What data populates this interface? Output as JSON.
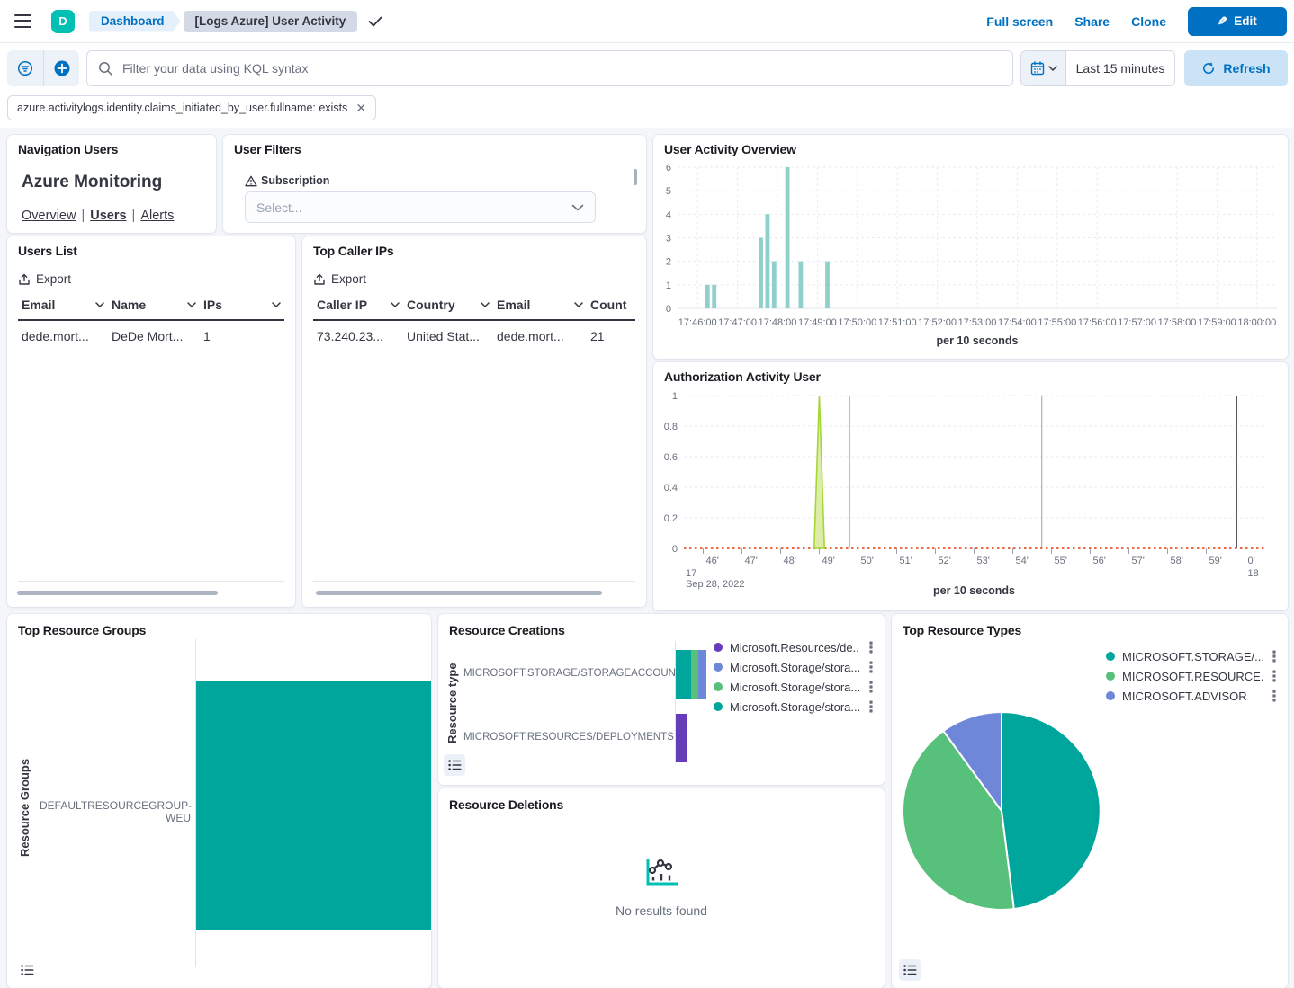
{
  "topbar": {
    "avatar_initial": "D",
    "breadcrumbs": [
      "Dashboard",
      "[Logs Azure] User Activity"
    ],
    "actions": {
      "full_screen": "Full screen",
      "share": "Share",
      "clone": "Clone",
      "edit": "Edit"
    }
  },
  "query_bar": {
    "search_placeholder": "Filter your data using KQL syntax",
    "time_range": "Last 15 minutes",
    "refresh_label": "Refresh",
    "filter_pill": "azure.activitylogs.identity.claims_initiated_by_user.fullname: exists"
  },
  "colors": {
    "accent": "#0071C2",
    "teal": "#00A69B",
    "green": "#57C17B",
    "periwinkle": "#6F87D8",
    "purple": "#663DB8",
    "histogram_bar": "#8FD0CA",
    "orange": "#ED6B45",
    "spike_stroke": "#A5D735",
    "spike_fill": "#DDEDA9",
    "grid": "#E8EBF1",
    "axis_text": "#69707D",
    "annotation_gray": "#98A2B3",
    "annotation_dark": "#54575C"
  },
  "panels": {
    "navigation_users": {
      "title": "Navigation Users",
      "heading": "Azure Monitoring",
      "links": [
        "Overview",
        "Users",
        "Alerts"
      ]
    },
    "user_filters": {
      "title": "User Filters",
      "field_label": "Subscription",
      "select_placeholder": "Select..."
    },
    "user_activity_overview": {
      "title": "User Activity Overview",
      "chart_data": {
        "type": "bar",
        "x_ticks": [
          "17:46:00",
          "17:47:00",
          "17:48:00",
          "17:49:00",
          "17:50:00",
          "17:51:00",
          "17:52:00",
          "17:53:00",
          "17:54:00",
          "17:55:00",
          "17:56:00",
          "17:57:00",
          "17:58:00",
          "17:59:00",
          "18:00:00"
        ],
        "x_domain": [
          "17:45:30",
          "18:00:30"
        ],
        "y_ticks": [
          0,
          1,
          2,
          3,
          4,
          5,
          6
        ],
        "ylim": [
          0,
          6
        ],
        "bars": [
          {
            "t": "17:46:10",
            "v": 1
          },
          {
            "t": "17:46:20",
            "v": 1
          },
          {
            "t": "17:47:30",
            "v": 3
          },
          {
            "t": "17:47:40",
            "v": 4
          },
          {
            "t": "17:47:50",
            "v": 2
          },
          {
            "t": "17:48:10",
            "v": 6
          },
          {
            "t": "17:48:30",
            "v": 2
          },
          {
            "t": "17:49:10",
            "v": 2
          }
        ],
        "bucket_seconds": 10,
        "xlabel": "per 10 seconds"
      }
    },
    "users_list": {
      "title": "Users List",
      "export_label": "Export",
      "columns": [
        {
          "label": "Email",
          "sort": true
        },
        {
          "label": "Name",
          "sort": true
        },
        {
          "label": "IPs",
          "sort": true
        }
      ],
      "rows": [
        [
          "dede.mort...",
          "DeDe Mort...",
          "1"
        ]
      ]
    },
    "top_caller_ips": {
      "title": "Top Caller IPs",
      "export_label": "Export",
      "columns": [
        {
          "label": "Caller IP",
          "sort": true
        },
        {
          "label": "Country",
          "sort": true
        },
        {
          "label": "Email",
          "sort": true
        },
        {
          "label": "Count",
          "sort": false
        }
      ],
      "rows": [
        [
          "73.240.23...",
          "United Stat...",
          "dede.mort...",
          "21"
        ]
      ]
    },
    "authorization_activity": {
      "title": "Authorization Activity User",
      "chart_data": {
        "type": "area",
        "x_domain": [
          "17:45:30",
          "18:00:30"
        ],
        "minute_ticks": [
          "46'",
          "47'",
          "48'",
          "49'",
          "50'",
          "51'",
          "52'",
          "53'",
          "54'",
          "55'",
          "56'",
          "57'",
          "58'",
          "59'",
          "0'"
        ],
        "hour_label_left": "17",
        "hour_label_right": "18",
        "date_label": "Sep 28, 2022",
        "y_ticks": [
          0,
          0.2,
          0.4,
          0.6,
          0.8,
          1
        ],
        "ylim": [
          0,
          1
        ],
        "spike": {
          "t": "17:49:00",
          "value": 1,
          "half_width_seconds": 8
        },
        "baseline_value": 0,
        "annotations": [
          {
            "t": "17:49:47",
            "tone": "gray"
          },
          {
            "t": "17:54:45",
            "tone": "gray"
          },
          {
            "t": "17:59:47",
            "tone": "dark"
          }
        ],
        "xlabel": "per 10 seconds"
      }
    },
    "top_resource_groups": {
      "title": "Top Resource Groups",
      "chart_data": {
        "type": "bar",
        "orientation": "horizontal",
        "ylabel": "Resource Groups",
        "categories": [
          "DEFAULTRESOURCEGROUP-WEU"
        ],
        "values": [
          21
        ],
        "color": "#00A69B"
      }
    },
    "resource_creations": {
      "title": "Resource Creations",
      "chart_data": {
        "type": "bar",
        "orientation": "horizontal",
        "stacked": true,
        "ylabel": "Resource type",
        "categories": [
          "MICROSOFT.STORAGE/STORAGEACCOUNTS",
          "MICROSOFT.RESOURCES/DEPLOYMENTS"
        ],
        "series": [
          {
            "name": "Microsoft.Resources/de...",
            "color": "#663DB8",
            "values": [
              0,
              3
            ]
          },
          {
            "name": "Microsoft.Storage/stora...",
            "color": "#6F87D8",
            "values": [
              2,
              0
            ]
          },
          {
            "name": "Microsoft.Storage/stora...",
            "color": "#57C17B",
            "values": [
              2,
              0
            ]
          },
          {
            "name": "Microsoft.Storage/stora...",
            "color": "#00A69B",
            "values": [
              4,
              0
            ]
          }
        ],
        "stack_draw_order": [
          3,
          2,
          1,
          0
        ],
        "legend_position": "right"
      }
    },
    "resource_deletions": {
      "title": "Resource Deletions",
      "empty_message": "No results found"
    },
    "top_resource_types": {
      "title": "Top Resource Types",
      "chart_data": {
        "type": "pie",
        "slices": [
          {
            "label": "MICROSOFT.STORAGE/...",
            "value": 48,
            "color": "#00A69B"
          },
          {
            "label": "MICROSOFT.RESOURCE...",
            "value": 42,
            "color": "#57C17B"
          },
          {
            "label": "MICROSOFT.ADVISOR",
            "value": 10,
            "color": "#6F87D8"
          }
        ],
        "legend_position": "right"
      }
    }
  }
}
